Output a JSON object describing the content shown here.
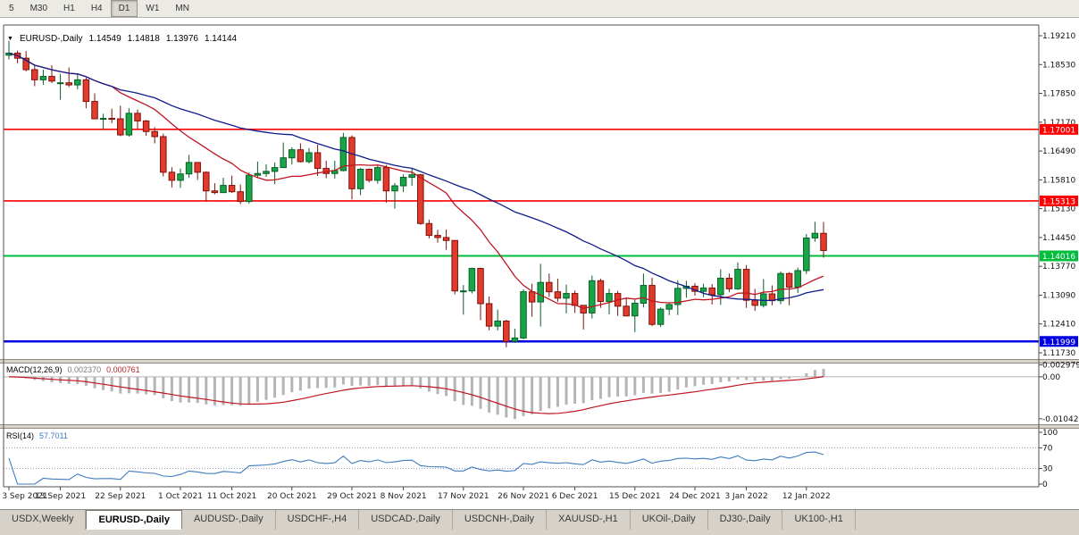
{
  "toolbar": {
    "buttons": [
      {
        "label": "5",
        "active": false
      },
      {
        "label": "M30",
        "active": false
      },
      {
        "label": "H1",
        "active": false
      },
      {
        "label": "H4",
        "active": false
      },
      {
        "label": "D1",
        "active": true
      },
      {
        "label": "W1",
        "active": false
      },
      {
        "label": "MN",
        "active": false
      }
    ]
  },
  "chart": {
    "symbol_period": "EURUSD-,Daily",
    "open": "1.14549",
    "high": "1.14818",
    "low": "1.13976",
    "close": "1.14144"
  },
  "indicators": {
    "macd": {
      "name": "MACD(12,26,9)",
      "value_main": "0.002370",
      "value_signal": "0.000761"
    },
    "rsi": {
      "name": "RSI(14)",
      "value": "57.7011"
    }
  },
  "tabs": [
    {
      "label": "USDX,Weekly",
      "active": false
    },
    {
      "label": "EURUSD-,Daily",
      "active": true
    },
    {
      "label": "AUDUSD-,Daily",
      "active": false
    },
    {
      "label": "USDCHF-,H4",
      "active": false
    },
    {
      "label": "USDCAD-,Daily",
      "active": false
    },
    {
      "label": "USDCNH-,Daily",
      "active": false
    },
    {
      "label": "XAUUSD-,H1",
      "active": false
    },
    {
      "label": "UKOil-,Daily",
      "active": false
    },
    {
      "label": "DJ30-,Daily",
      "active": false
    },
    {
      "label": "UK100-,H1",
      "active": false
    }
  ],
  "chart_data": {
    "type": "candlestick",
    "symbol": "EURUSD-",
    "timeframe": "Daily",
    "up_color": "#19A447",
    "down_color": "#E23A2C",
    "up_stroke": "#065F27",
    "down_stroke": "#7D120B",
    "y_axis": {
      "top_price": 1.19463,
      "bottom_price": 1.11583,
      "ticks": [
        "1.19210",
        "1.18530",
        "1.17850",
        "1.17170",
        "1.16490",
        "1.15810",
        "1.15130",
        "1.14450",
        "1.13770",
        "1.13090",
        "1.12410",
        "1.11730"
      ]
    },
    "levels": [
      {
        "price": 1.17001,
        "label": "1.17001",
        "color": "#FF0000",
        "width": 1.6
      },
      {
        "price": 1.15313,
        "label": "1.15313",
        "color": "#FF0000",
        "width": 1.6
      },
      {
        "price": 1.14016,
        "label": "1.14016",
        "color": "#00BE3C",
        "width": 2
      },
      {
        "price": 1.11999,
        "label": "1.11999",
        "color": "#0000E0",
        "width": 2.6
      }
    ],
    "moving_averages": [
      {
        "period": 13,
        "color": "#C01422"
      },
      {
        "period": 34,
        "color": "#101C8C"
      }
    ],
    "macd": {
      "fast": 12,
      "slow": 26,
      "signal": 9,
      "histogram_color": "#B4B4B4",
      "signal_color": "#C01422",
      "axis_labels": [
        "0.002979",
        "0.00",
        "-0.010422"
      ]
    },
    "rsi": {
      "period": 14,
      "color": "#3E7BC0",
      "levels": [
        70,
        30
      ],
      "axis_labels": [
        "100",
        "70",
        "30",
        "0"
      ]
    },
    "x_labels": [
      {
        "i": 0,
        "t": "3 Sep 2021"
      },
      {
        "i": 6,
        "t": "13 Sep 2021"
      },
      {
        "i": 13,
        "t": "22 Sep 2021"
      },
      {
        "i": 20,
        "t": "1 Oct 2021"
      },
      {
        "i": 26,
        "t": "11 Oct 2021"
      },
      {
        "i": 33,
        "t": "20 Oct 2021"
      },
      {
        "i": 40,
        "t": "29 Oct 2021"
      },
      {
        "i": 46,
        "t": "8 Nov 2021"
      },
      {
        "i": 53,
        "t": "17 Nov 2021"
      },
      {
        "i": 60,
        "t": "26 Nov 2021"
      },
      {
        "i": 66,
        "t": "6 Dec 2021"
      },
      {
        "i": 73,
        "t": "15 Dec 2021"
      },
      {
        "i": 80,
        "t": "24 Dec 2021"
      },
      {
        "i": 86,
        "t": "3 Jan 2022"
      },
      {
        "i": 93,
        "t": "12 Jan 2022"
      }
    ],
    "candles": [
      [
        1.1875,
        1.1909,
        1.1865,
        1.188
      ],
      [
        1.188,
        1.1886,
        1.1856,
        1.1868
      ],
      [
        1.1868,
        1.1885,
        1.1837,
        1.1841
      ],
      [
        1.1841,
        1.185,
        1.1802,
        1.1817
      ],
      [
        1.1817,
        1.1841,
        1.1805,
        1.1825
      ],
      [
        1.1825,
        1.1851,
        1.1809,
        1.1814
      ],
      [
        1.181,
        1.1831,
        1.177,
        1.181
      ],
      [
        1.181,
        1.1846,
        1.18,
        1.1805
      ],
      [
        1.1805,
        1.1832,
        1.1795,
        1.1817
      ],
      [
        1.1817,
        1.1822,
        1.175,
        1.1766
      ],
      [
        1.1766,
        1.1785,
        1.1724,
        1.1725
      ],
      [
        1.1725,
        1.1737,
        1.17,
        1.1726
      ],
      [
        1.1726,
        1.1749,
        1.1715,
        1.1725
      ],
      [
        1.1725,
        1.1756,
        1.1684,
        1.1687
      ],
      [
        1.1687,
        1.175,
        1.1683,
        1.1738
      ],
      [
        1.1738,
        1.1747,
        1.1701,
        1.172
      ],
      [
        1.172,
        1.1722,
        1.1685,
        1.1695
      ],
      [
        1.1695,
        1.1705,
        1.1667,
        1.1683
      ],
      [
        1.1683,
        1.169,
        1.1589,
        1.1599
      ],
      [
        1.1599,
        1.1611,
        1.1563,
        1.158
      ],
      [
        1.158,
        1.1608,
        1.1562,
        1.1595
      ],
      [
        1.1595,
        1.164,
        1.1586,
        1.1622
      ],
      [
        1.1622,
        1.1622,
        1.1581,
        1.1599
      ],
      [
        1.1599,
        1.1601,
        1.1529,
        1.1555
      ],
      [
        1.1555,
        1.1573,
        1.1547,
        1.1551
      ],
      [
        1.1551,
        1.1586,
        1.1551,
        1.1568
      ],
      [
        1.1568,
        1.1591,
        1.155,
        1.1553
      ],
      [
        1.1553,
        1.157,
        1.1524,
        1.153
      ],
      [
        1.153,
        1.1598,
        1.1525,
        1.1592
      ],
      [
        1.1592,
        1.1624,
        1.1585,
        1.1596
      ],
      [
        1.1596,
        1.1618,
        1.1588,
        1.1601
      ],
      [
        1.1601,
        1.1622,
        1.1571,
        1.161
      ],
      [
        1.161,
        1.1669,
        1.1609,
        1.1633
      ],
      [
        1.1633,
        1.1658,
        1.1617,
        1.1652
      ],
      [
        1.1652,
        1.1667,
        1.1622,
        1.1624
      ],
      [
        1.1624,
        1.1656,
        1.162,
        1.1645
      ],
      [
        1.1645,
        1.1664,
        1.159,
        1.1608
      ],
      [
        1.1608,
        1.1626,
        1.1585,
        1.1596
      ],
      [
        1.1596,
        1.1626,
        1.1584,
        1.1603
      ],
      [
        1.1603,
        1.1692,
        1.1601,
        1.1681
      ],
      [
        1.1681,
        1.1686,
        1.1535,
        1.156
      ],
      [
        1.156,
        1.1609,
        1.1545,
        1.1606
      ],
      [
        1.1606,
        1.1608,
        1.1575,
        1.158
      ],
      [
        1.158,
        1.1616,
        1.1572,
        1.161
      ],
      [
        1.161,
        1.1616,
        1.1527,
        1.1555
      ],
      [
        1.1555,
        1.1573,
        1.1513,
        1.1567
      ],
      [
        1.1567,
        1.1594,
        1.1552,
        1.1587
      ],
      [
        1.1587,
        1.1609,
        1.1567,
        1.1593
      ],
      [
        1.1593,
        1.1595,
        1.1475,
        1.1478
      ],
      [
        1.1478,
        1.1487,
        1.1443,
        1.145
      ],
      [
        1.145,
        1.1463,
        1.1433,
        1.1445
      ],
      [
        1.1445,
        1.1464,
        1.1416,
        1.1438
      ],
      [
        1.1438,
        1.1439,
        1.1311,
        1.1319
      ],
      [
        1.1319,
        1.1333,
        1.1263,
        1.1319
      ],
      [
        1.1319,
        1.1374,
        1.1313,
        1.1372
      ],
      [
        1.1372,
        1.1374,
        1.125,
        1.1289
      ],
      [
        1.1289,
        1.1306,
        1.1226,
        1.1236
      ],
      [
        1.1236,
        1.1275,
        1.1226,
        1.1248
      ],
      [
        1.1248,
        1.1251,
        1.1186,
        1.12
      ],
      [
        1.12,
        1.123,
        1.1196,
        1.1208
      ],
      [
        1.1208,
        1.1323,
        1.1205,
        1.1317
      ],
      [
        1.1317,
        1.1336,
        1.1258,
        1.1293
      ],
      [
        1.1293,
        1.1383,
        1.1235,
        1.1339
      ],
      [
        1.1339,
        1.136,
        1.1305,
        1.1317
      ],
      [
        1.1317,
        1.1348,
        1.1293,
        1.1302
      ],
      [
        1.1302,
        1.1334,
        1.1266,
        1.1313
      ],
      [
        1.1313,
        1.132,
        1.1267,
        1.1285
      ],
      [
        1.1285,
        1.1285,
        1.1228,
        1.1267
      ],
      [
        1.1267,
        1.1355,
        1.1254,
        1.1343
      ],
      [
        1.1343,
        1.1348,
        1.1279,
        1.1294
      ],
      [
        1.1294,
        1.1324,
        1.1264,
        1.1313
      ],
      [
        1.1313,
        1.1319,
        1.126,
        1.1283
      ],
      [
        1.1283,
        1.1303,
        1.126,
        1.126
      ],
      [
        1.126,
        1.1298,
        1.1222,
        1.129
      ],
      [
        1.129,
        1.136,
        1.128,
        1.1332
      ],
      [
        1.1332,
        1.135,
        1.1236,
        1.124
      ],
      [
        1.124,
        1.128,
        1.1234,
        1.1276
      ],
      [
        1.1276,
        1.1292,
        1.1262,
        1.1287
      ],
      [
        1.1287,
        1.1344,
        1.1262,
        1.1325
      ],
      [
        1.1325,
        1.1343,
        1.1303,
        1.133
      ],
      [
        1.133,
        1.1337,
        1.1308,
        1.1318
      ],
      [
        1.1318,
        1.1336,
        1.1304,
        1.1326
      ],
      [
        1.1326,
        1.1335,
        1.1287,
        1.131
      ],
      [
        1.131,
        1.137,
        1.1286,
        1.1349
      ],
      [
        1.1349,
        1.136,
        1.1316,
        1.1324
      ],
      [
        1.1324,
        1.1386,
        1.1321,
        1.137
      ],
      [
        1.137,
        1.138,
        1.1279,
        1.1297
      ],
      [
        1.1297,
        1.1324,
        1.1272,
        1.1285
      ],
      [
        1.1285,
        1.1347,
        1.128,
        1.1312
      ],
      [
        1.1312,
        1.1332,
        1.1285,
        1.1296
      ],
      [
        1.1296,
        1.1365,
        1.1288,
        1.136
      ],
      [
        1.136,
        1.1363,
        1.1285,
        1.1328
      ],
      [
        1.1328,
        1.1374,
        1.1314,
        1.1367
      ],
      [
        1.1367,
        1.1453,
        1.1359,
        1.1444
      ],
      [
        1.1444,
        1.1482,
        1.1435,
        1.1455
      ],
      [
        1.14549,
        1.14818,
        1.13976,
        1.14144
      ]
    ]
  }
}
